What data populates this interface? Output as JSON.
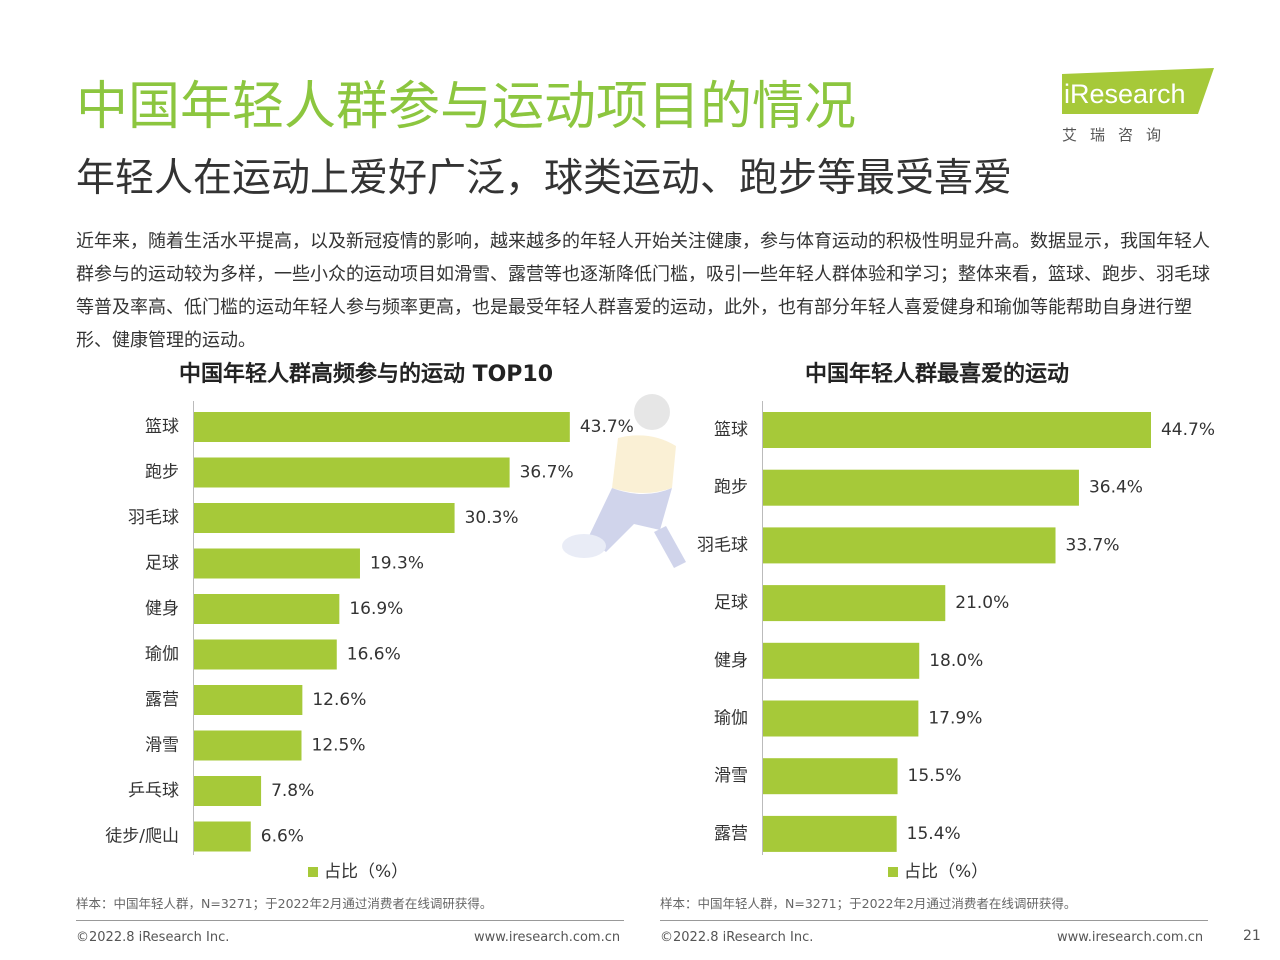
{
  "header": {
    "title": "中国年轻人群参与运动项目的情况",
    "subtitle": "年轻人在运动上爱好广泛，球类运动、跑步等最受喜爱"
  },
  "logo": {
    "text": "iResearch",
    "cn": "艾瑞咨询"
  },
  "intro": "近年来，随着生活水平提高，以及新冠疫情的影响，越来越多的年轻人开始关注健康，参与体育运动的积极性明显升高。数据显示，我国年轻人群参与的运动较为多样，一些小众的运动项目如滑雪、露营等也逐渐降低门槛，吸引一些年轻人群体验和学习；整体来看，篮球、跑步、羽毛球等普及率高、低门槛的运动年轻人参与频率更高，也是最受年轻人群喜爱的运动，此外，也有部分年轻人喜爱健身和瑜伽等能帮助自身进行塑形、健康管理的运动。",
  "chart_data": [
    {
      "type": "bar",
      "orientation": "horizontal",
      "title": "中国年轻人群高频参与的运动 TOP10",
      "categories": [
        "篮球",
        "跑步",
        "羽毛球",
        "足球",
        "健身",
        "瑜伽",
        "露营",
        "滑雪",
        "乒乓球",
        "徒步/爬山"
      ],
      "series": [
        {
          "name": "占比（%）",
          "values": [
            43.7,
            36.7,
            30.3,
            19.3,
            16.9,
            16.6,
            12.6,
            12.5,
            7.8,
            6.6
          ],
          "labels": [
            "43.7%",
            "36.7%",
            "30.3%",
            "19.3%",
            "16.9%",
            "16.6%",
            "12.6%",
            "12.5%",
            "7.8%",
            "6.6%"
          ]
        }
      ],
      "color": "#a6c939",
      "legend": "bottom",
      "grid": false
    },
    {
      "type": "bar",
      "orientation": "horizontal",
      "title": "中国年轻人群最喜爱的运动",
      "categories": [
        "篮球",
        "跑步",
        "羽毛球",
        "足球",
        "健身",
        "瑜伽",
        "滑雪",
        "露营"
      ],
      "series": [
        {
          "name": "占比（%）",
          "values": [
            44.7,
            36.4,
            33.7,
            21.0,
            18.0,
            17.9,
            15.5,
            15.4
          ],
          "labels": [
            "44.7%",
            "36.4%",
            "33.7%",
            "21.0%",
            "18.0%",
            "17.9%",
            "15.5%",
            "15.4%"
          ]
        }
      ],
      "color": "#a6c939",
      "legend": "bottom",
      "grid": false
    }
  ],
  "notes": {
    "left": "样本：中国年轻人群，N=3271；于2022年2月通过消费者在线调研获得。",
    "right": "样本：中国年轻人群，N=3271；于2022年2月通过消费者在线调研获得。"
  },
  "footer": {
    "copyright_left": "©2022.8 iResearch Inc.",
    "url_left": "www.iresearch.com.cn",
    "copyright_right": "©2022.8 iResearch Inc.",
    "url_right": "www.iresearch.com.cn",
    "page": "21"
  },
  "colors": {
    "title": "#8cc63f",
    "bar": "#a6c939",
    "logo": "#a6c939"
  }
}
